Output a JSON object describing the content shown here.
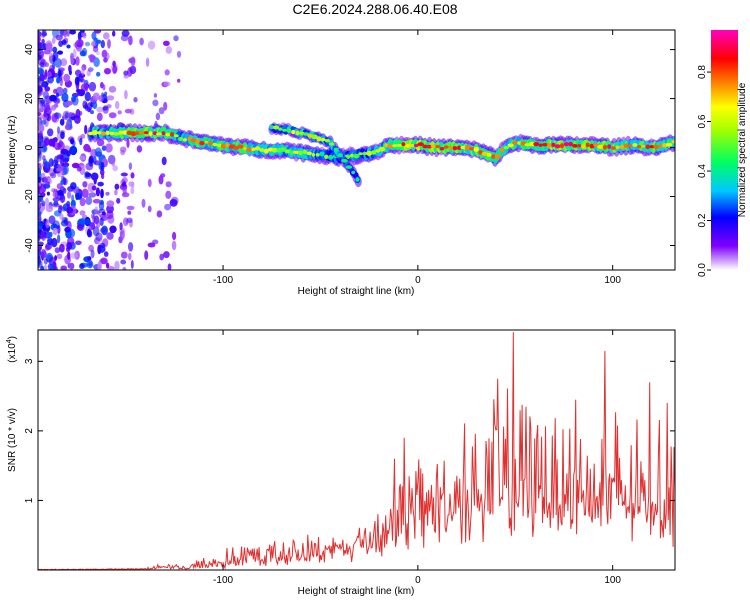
{
  "title": "C2E6.2024.288.06.40.E08",
  "chart_data": [
    {
      "type": "heatmap",
      "xlabel": "Height of straight line (km)",
      "ylabel": "Frequency (Hz)",
      "xlim": [
        -195,
        132
      ],
      "ylim": [
        -50,
        48
      ],
      "xticks": [
        -100,
        0,
        100
      ],
      "yticks": [
        -40,
        -20,
        0,
        20,
        40
      ],
      "colorbar": {
        "label": "Normalized spectral amplitude",
        "range": [
          0,
          0.97
        ],
        "ticks": [
          0.0,
          0.2,
          0.4,
          0.6,
          0.8
        ],
        "tick_labels": [
          "0.0",
          "0.2",
          "0.4",
          "0.6",
          "0.8"
        ],
        "colormap": [
          "#ffffff",
          "#7f00ff",
          "#0000ff",
          "#00c8ff",
          "#00ff60",
          "#a0ff00",
          "#ffff00",
          "#ff8000",
          "#ff0000",
          "#ff0080",
          "#ff00c0"
        ]
      },
      "noise_region": {
        "x": [
          -195,
          -120
        ],
        "y": [
          -50,
          48
        ]
      },
      "ridge": {
        "x": [
          -168,
          -150,
          -130,
          -122,
          -110,
          -100,
          -90,
          -80,
          -70,
          -60,
          -50,
          -40,
          -30,
          -22,
          -15,
          -8,
          0,
          10,
          20,
          30,
          40,
          45,
          50,
          60,
          70,
          80,
          90,
          100,
          110,
          120,
          132
        ],
        "y": [
          6,
          6,
          6,
          4,
          2,
          1,
          0,
          -1,
          -1,
          -2,
          -3,
          -4,
          -3,
          -2,
          1,
          1,
          1,
          0,
          0,
          -1,
          -4,
          0,
          2,
          1,
          1,
          1,
          1,
          0,
          1,
          0,
          2
        ],
        "peak": [
          0.55,
          0.75,
          0.85,
          0.6,
          0.75,
          0.7,
          0.75,
          0.65,
          0.55,
          0.6,
          0.45,
          0.5,
          0.45,
          0.55,
          0.7,
          0.8,
          0.9,
          0.85,
          0.8,
          0.75,
          0.8,
          0.6,
          0.7,
          0.75,
          0.85,
          0.9,
          0.8,
          0.85,
          0.75,
          0.8,
          0.7
        ]
      },
      "secondary_branch": {
        "x": [
          -75,
          -65,
          -55,
          -45,
          -35,
          -30
        ],
        "y": [
          8,
          7,
          5,
          2,
          -8,
          -14
        ],
        "peak": [
          0.45,
          0.55,
          0.6,
          0.55,
          0.4,
          0.35
        ]
      }
    },
    {
      "type": "line",
      "xlabel": "Height of straight line (km)",
      "ylabel": "SNR (10 * v/v)",
      "y_multiplier": "(x10",
      "y_multiplier_exp": "4",
      "y_multiplier_close": ")",
      "xlim": [
        -195,
        132
      ],
      "ylim": [
        0,
        3.45
      ],
      "xticks": [
        -100,
        0,
        100
      ],
      "yticks": [
        1,
        2,
        3
      ],
      "color": "#e03030",
      "envelope": {
        "x": [
          -195,
          -140,
          -130,
          -120,
          -110,
          -100,
          -90,
          -80,
          -70,
          -60,
          -50,
          -40,
          -30,
          -20,
          -10,
          0,
          10,
          20,
          30,
          40,
          50,
          60,
          70,
          80,
          90,
          100,
          110,
          120,
          132
        ],
        "base": [
          0.0,
          0.01,
          0.05,
          0.02,
          0.04,
          0.08,
          0.12,
          0.15,
          0.18,
          0.22,
          0.25,
          0.3,
          0.35,
          0.5,
          0.6,
          0.75,
          0.85,
          0.95,
          1.0,
          1.05,
          1.1,
          1.1,
          1.05,
          1.05,
          1.0,
          1.0,
          0.95,
          0.95,
          0.9
        ],
        "upper": [
          0.02,
          0.04,
          0.12,
          0.08,
          0.2,
          0.32,
          0.4,
          0.45,
          0.5,
          0.55,
          0.55,
          0.6,
          0.75,
          1.1,
          1.4,
          1.8,
          2.0,
          2.2,
          2.4,
          2.6,
          2.7,
          2.7,
          2.6,
          2.5,
          2.5,
          2.4,
          2.3,
          2.3,
          2.2
        ]
      },
      "peaks": [
        {
          "x": 41,
          "y": 2.75
        },
        {
          "x": 49,
          "y": 3.42
        },
        {
          "x": 81,
          "y": 2.45
        },
        {
          "x": 96,
          "y": 3.15
        },
        {
          "x": 119,
          "y": 2.7
        },
        {
          "x": 128,
          "y": 2.4
        },
        {
          "x": -7,
          "y": 1.9
        },
        {
          "x": -12,
          "y": 1.6
        }
      ]
    }
  ]
}
